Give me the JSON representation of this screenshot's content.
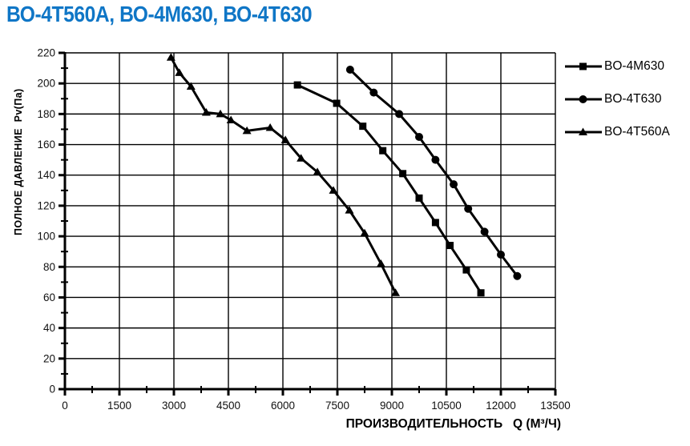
{
  "title": "ВО-4Т560А, ВО-4М630, ВО-4Т630",
  "colors": {
    "title_accent": "#0f76c6",
    "series_stroke": "#000000",
    "grid": "#000000",
    "tick_label": "#111111"
  },
  "chart_data": {
    "type": "line",
    "title": "ВО-4Т560А, ВО-4М630, ВО-4Т630",
    "xlabel": "ПРОИЗВОДИТЕЛЬНОСТЬ   Q (М³/Ч)",
    "ylabel": "ПОЛНОЕ ДАВЛЕНИЕ  Pv(Па)",
    "xlim": [
      0,
      13500
    ],
    "ylim": [
      0,
      220
    ],
    "x_ticks": [
      0,
      1500,
      3000,
      4500,
      6000,
      7500,
      9000,
      10500,
      12000,
      13500
    ],
    "y_ticks": [
      0,
      20,
      40,
      60,
      80,
      100,
      120,
      140,
      160,
      180,
      200,
      220
    ],
    "x_minor_step": 750,
    "y_minor_step": 10,
    "grid": "major-both",
    "legend_position": "right-outside",
    "series": [
      {
        "name": "BO-4M630",
        "marker": "square",
        "points": [
          [
            6400,
            199
          ],
          [
            7480,
            187
          ],
          [
            8200,
            172
          ],
          [
            8750,
            156
          ],
          [
            9300,
            141
          ],
          [
            9750,
            125
          ],
          [
            10200,
            109
          ],
          [
            10600,
            94
          ],
          [
            11050,
            78
          ],
          [
            11450,
            63
          ]
        ]
      },
      {
        "name": "BO-4T630",
        "marker": "circle",
        "points": [
          [
            7850,
            209
          ],
          [
            8500,
            194
          ],
          [
            9200,
            180
          ],
          [
            9750,
            165
          ],
          [
            10200,
            150
          ],
          [
            10700,
            134
          ],
          [
            11100,
            118
          ],
          [
            11550,
            103
          ],
          [
            12000,
            88
          ],
          [
            12450,
            74
          ]
        ]
      },
      {
        "name": "BO-4T560A",
        "marker": "triangle",
        "points": [
          [
            2920,
            217
          ],
          [
            3150,
            207
          ],
          [
            3470,
            198
          ],
          [
            3890,
            181
          ],
          [
            4280,
            180
          ],
          [
            4570,
            176
          ],
          [
            5010,
            169
          ],
          [
            5650,
            171
          ],
          [
            6070,
            163
          ],
          [
            6500,
            151
          ],
          [
            6950,
            142
          ],
          [
            7390,
            130
          ],
          [
            7830,
            117
          ],
          [
            8250,
            102
          ],
          [
            8700,
            82
          ],
          [
            9100,
            63
          ]
        ]
      }
    ]
  }
}
